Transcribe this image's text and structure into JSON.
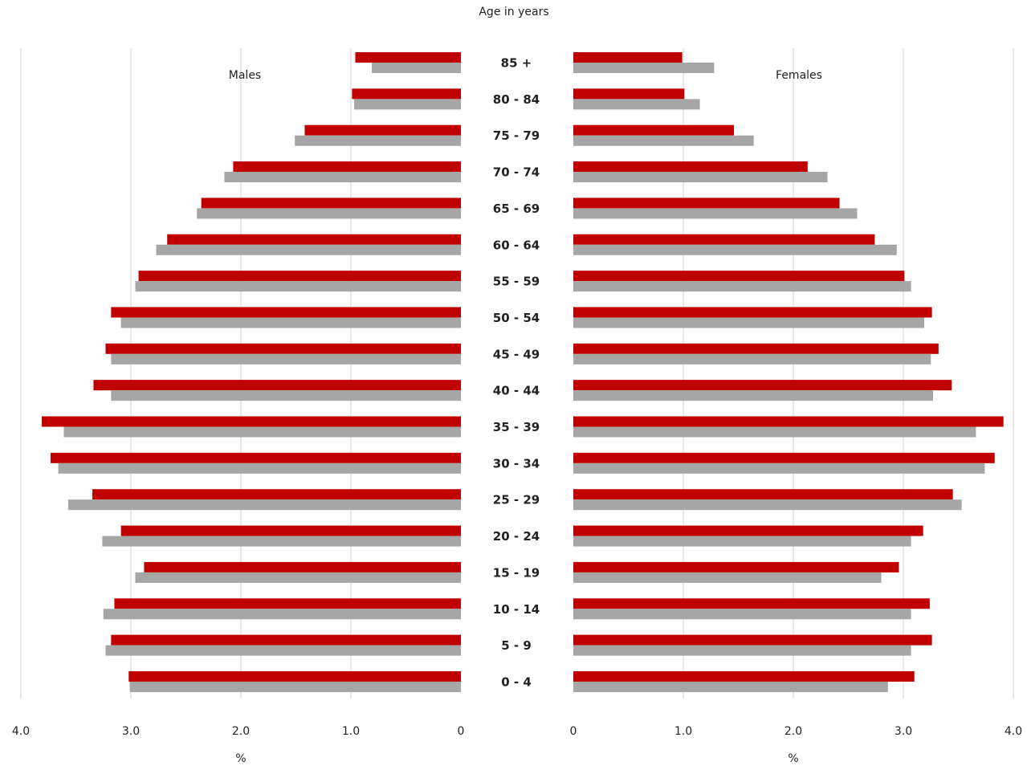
{
  "chart_data": {
    "type": "pyramid",
    "title": "Age in years",
    "categories": [
      "85 +",
      "80 - 84",
      "75 - 79",
      "70 - 74",
      "65 - 69",
      "60 - 64",
      "55 - 59",
      "50 - 54",
      "45 - 49",
      "40 - 44",
      "35 - 39",
      "30 - 34",
      "25 - 29",
      "20 - 24",
      "15 - 19",
      "10 - 14",
      "5 - 9",
      "0 - 4"
    ],
    "grid": true,
    "panels": [
      {
        "label": "Males",
        "xlabel": "%",
        "reversed": true,
        "xlim": [
          0,
          4
        ],
        "xticks": [
          {
            "value": 4,
            "label": "4.0"
          },
          {
            "value": 3,
            "label": "3.0"
          },
          {
            "value": 2,
            "label": "2.0"
          },
          {
            "value": 1,
            "label": "1.0"
          },
          0
        ],
        "series": [
          {
            "color": "#c00000",
            "values": [
              0.96,
              0.99,
              1.42,
              2.07,
              2.36,
              2.67,
              2.93,
              3.18,
              3.23,
              3.34,
              3.81,
              3.73,
              3.35,
              3.09,
              2.88,
              3.15,
              3.18,
              3.02
            ]
          },
          {
            "color": "#a6a6a6",
            "values": [
              0.81,
              0.97,
              1.51,
              2.15,
              2.4,
              2.77,
              2.96,
              3.09,
              3.18,
              3.18,
              3.61,
              3.66,
              3.57,
              3.26,
              2.96,
              3.25,
              3.23,
              3.01
            ]
          }
        ]
      },
      {
        "label": "Females",
        "xlabel": "%",
        "reversed": false,
        "xlim": [
          0,
          4
        ],
        "xticks": [
          0,
          {
            "value": 1,
            "label": "1.0"
          },
          {
            "value": 2,
            "label": "2.0"
          },
          {
            "value": 3,
            "label": "3.0"
          },
          {
            "value": 4,
            "label": "4.0"
          }
        ],
        "series": [
          {
            "color": "#c00000",
            "values": [
              0.99,
              1.01,
              1.46,
              2.13,
              2.42,
              2.74,
              3.01,
              3.26,
              3.32,
              3.44,
              3.91,
              3.83,
              3.45,
              3.18,
              2.96,
              3.24,
              3.26,
              3.1
            ]
          },
          {
            "color": "#a6a6a6",
            "values": [
              1.28,
              1.15,
              1.64,
              2.31,
              2.58,
              2.94,
              3.07,
              3.19,
              3.25,
              3.27,
              3.66,
              3.74,
              3.53,
              3.07,
              2.8,
              3.07,
              3.07,
              2.86
            ]
          }
        ]
      }
    ]
  }
}
